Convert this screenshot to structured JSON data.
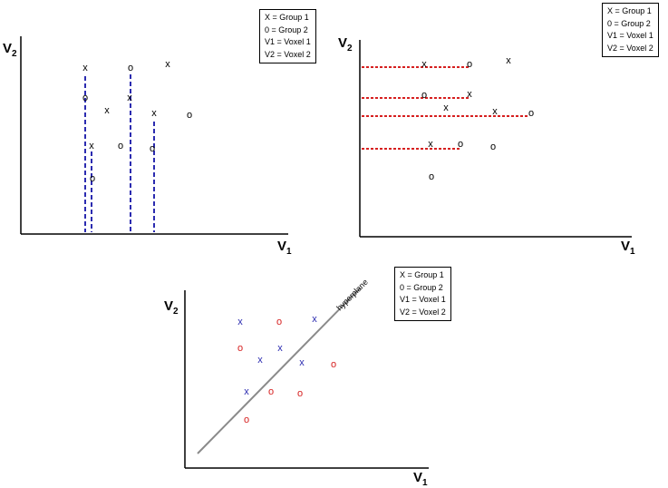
{
  "panels": [
    {
      "id": "panel-top-left",
      "axis_y": {
        "label": "V",
        "sub": "2"
      },
      "axis_x": {
        "label": "V",
        "sub": "1"
      },
      "legend": [
        "X = Group 1",
        "0 = Group 2",
        "V1 = Voxel 1",
        "V2 = Voxel 2"
      ],
      "projection_color": "#2b2bb0",
      "markers": [
        {
          "symbol": "x",
          "group": 1
        },
        {
          "symbol": "o",
          "group": 2
        },
        {
          "symbol": "x",
          "group": 1
        },
        {
          "symbol": "o",
          "group": 2
        },
        {
          "symbol": "x",
          "group": 1
        },
        {
          "symbol": "x",
          "group": 1
        },
        {
          "symbol": "o",
          "group": 2
        },
        {
          "symbol": "x",
          "group": 1
        },
        {
          "symbol": "o",
          "group": 2
        },
        {
          "symbol": "x",
          "group": 1
        },
        {
          "symbol": "o",
          "group": 2
        },
        {
          "symbol": "o",
          "group": 2
        }
      ]
    },
    {
      "id": "panel-top-right",
      "axis_y": {
        "label": "V",
        "sub": "2"
      },
      "axis_x": {
        "label": "V",
        "sub": "1"
      },
      "legend": [
        "X = Group 1",
        "0 = Group 2",
        "V1 = Voxel 1",
        "V2 = Voxel 2"
      ],
      "projection_color": "#d62020",
      "markers": [
        {
          "symbol": "x",
          "group": 1
        },
        {
          "symbol": "o",
          "group": 2
        },
        {
          "symbol": "x",
          "group": 1
        },
        {
          "symbol": "o",
          "group": 2
        },
        {
          "symbol": "x",
          "group": 1
        },
        {
          "symbol": "x",
          "group": 1
        },
        {
          "symbol": "x",
          "group": 1
        },
        {
          "symbol": "o",
          "group": 2
        },
        {
          "symbol": "x",
          "group": 1
        },
        {
          "symbol": "o",
          "group": 2
        },
        {
          "symbol": "o",
          "group": 2
        },
        {
          "symbol": "o",
          "group": 2
        }
      ]
    },
    {
      "id": "panel-bottom",
      "axis_y": {
        "label": "V",
        "sub": "2"
      },
      "axis_x": {
        "label": "V",
        "sub": "1"
      },
      "legend": [
        "X = Group 1",
        "0 = Group 2",
        "V1 = Voxel 1",
        "V2 = Voxel 2"
      ],
      "hyperplane_label": "hyperplane",
      "colors": {
        "group1": "#2b2bb0",
        "group2": "#d62020",
        "hyperplane": "#8a8a8a"
      },
      "markers": [
        {
          "symbol": "x",
          "group": 1
        },
        {
          "symbol": "o",
          "group": 2
        },
        {
          "symbol": "x",
          "group": 1
        },
        {
          "symbol": "o",
          "group": 2
        },
        {
          "symbol": "x",
          "group": 1
        },
        {
          "symbol": "x",
          "group": 1
        },
        {
          "symbol": "x",
          "group": 1
        },
        {
          "symbol": "o",
          "group": 2
        },
        {
          "symbol": "x",
          "group": 1
        },
        {
          "symbol": "o",
          "group": 2
        },
        {
          "symbol": "o",
          "group": 2
        },
        {
          "symbol": "o",
          "group": 2
        }
      ]
    }
  ]
}
